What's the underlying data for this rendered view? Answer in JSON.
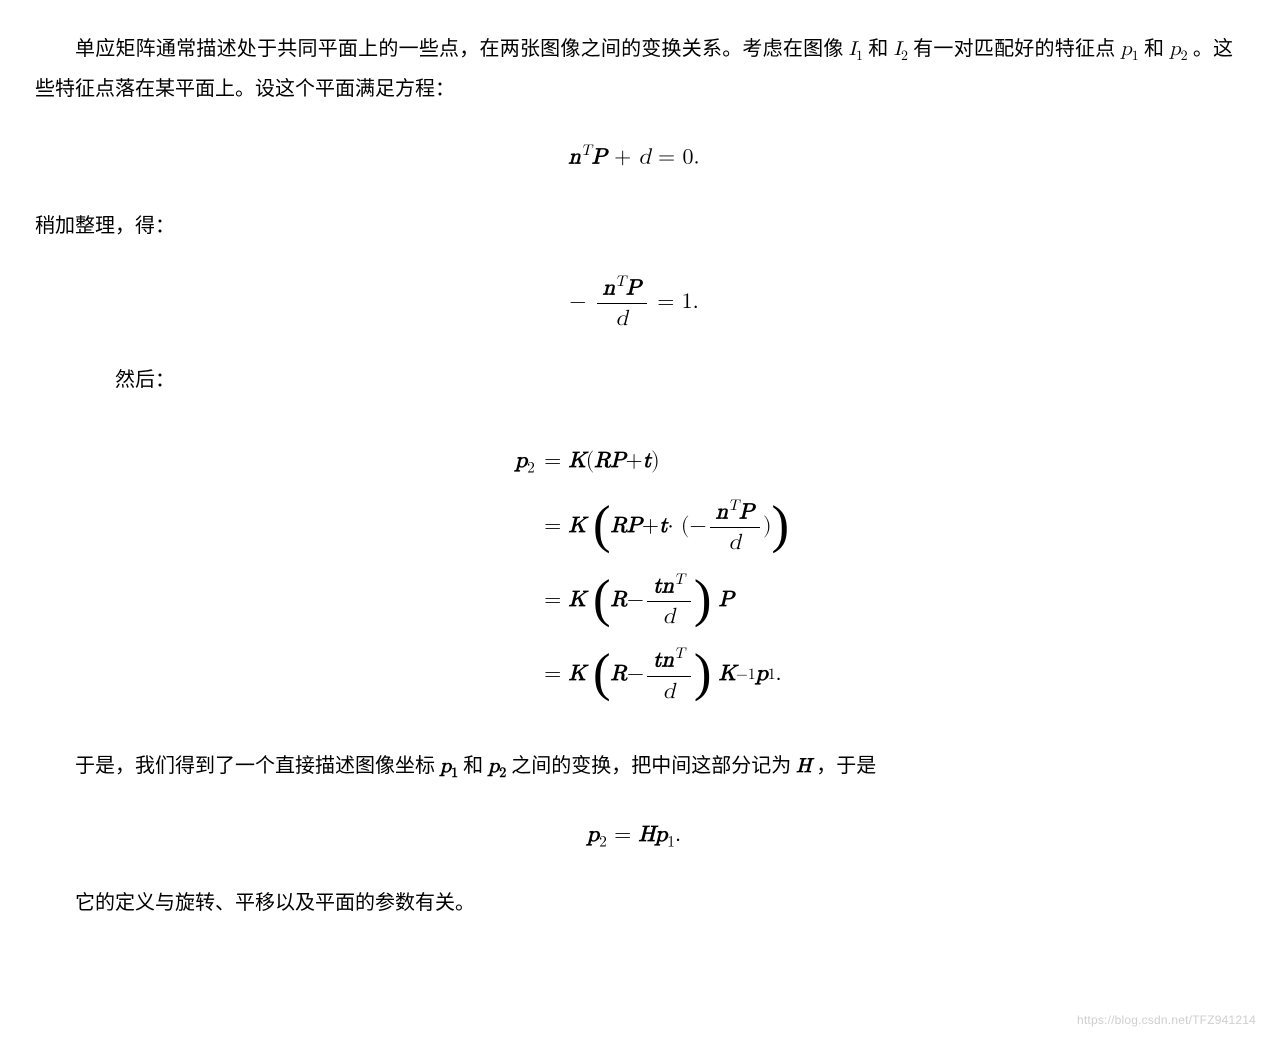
{
  "para1_a": "单应矩阵通常描述处于共同平面上的一些点，在两张图像之间的变换关系。考虑在图像 ",
  "I1": "I",
  "I1_sub": "1",
  "para1_b": " 和 ",
  "I2": "I",
  "I2_sub": "2",
  "para1_c": " 有一对匹配好的特征点 ",
  "p1": "p",
  "p1_sub": "1",
  "para1_d": " 和 ",
  "p2": "p",
  "p2_sub": "2",
  "para1_e": "。这些特征点落在某平面上。设这个平面满足方程：",
  "eq1_nT": "n",
  "eq1_T": "T",
  "eq1_P": "P",
  "eq1_plus": " + ",
  "eq1_d": "d",
  "eq1_eq0": " = 0.",
  "para2": "稍加整理，得：",
  "eq2_minus": "− ",
  "eq2_num_n": "n",
  "eq2_num_T": "T",
  "eq2_num_P": "P",
  "eq2_den_d": "d",
  "eq2_eq1": " = 1.",
  "para3": "然后：",
  "align": {
    "lhs": "p",
    "lhs_sub": "2",
    "row1": {
      "K": "K",
      "open": "(",
      "R": "R",
      "P": "P",
      "plus": " + ",
      "t": "t",
      "close": ")"
    },
    "row2": {
      "K": "K",
      "R": "R",
      "P": "P",
      "plus": " + ",
      "t": "t",
      "dot": " · (−",
      "n": "n",
      "T": "T",
      "Pnum": "P",
      "d": "d",
      "close2": ")"
    },
    "row3": {
      "K": "K",
      "R": "R",
      "minus": " − ",
      "t": "t",
      "n": "n",
      "T": "T",
      "d": "d",
      "P": "P"
    },
    "row4": {
      "K": "K",
      "R": "R",
      "minus": " − ",
      "t": "t",
      "n": "n",
      "T": "T",
      "d": "d",
      "K2": "K",
      "inv": "−1",
      "p": "p",
      "p_sub": "1",
      "dot": "."
    }
  },
  "para4_a": "于是，我们得到了一个直接描述图像坐标 ",
  "para4_p1": "p",
  "para4_p1_sub": "1",
  "para4_b": " 和 ",
  "para4_p2": "p",
  "para4_p2_sub": "2",
  "para4_c": " 之间的变换，把中间这部分记为 ",
  "para4_H": "H",
  "para4_d": "，于是",
  "eq5_p2": "p",
  "eq5_p2_sub": "2",
  "eq5_eq": " = ",
  "eq5_H": "H",
  "eq5_p1": "p",
  "eq5_p1_sub": "1",
  "eq5_dot": ".",
  "para5": "它的定义与旋转、平移以及平面的参数有关。",
  "watermark": "https://blog.csdn.net/TFZ941214"
}
